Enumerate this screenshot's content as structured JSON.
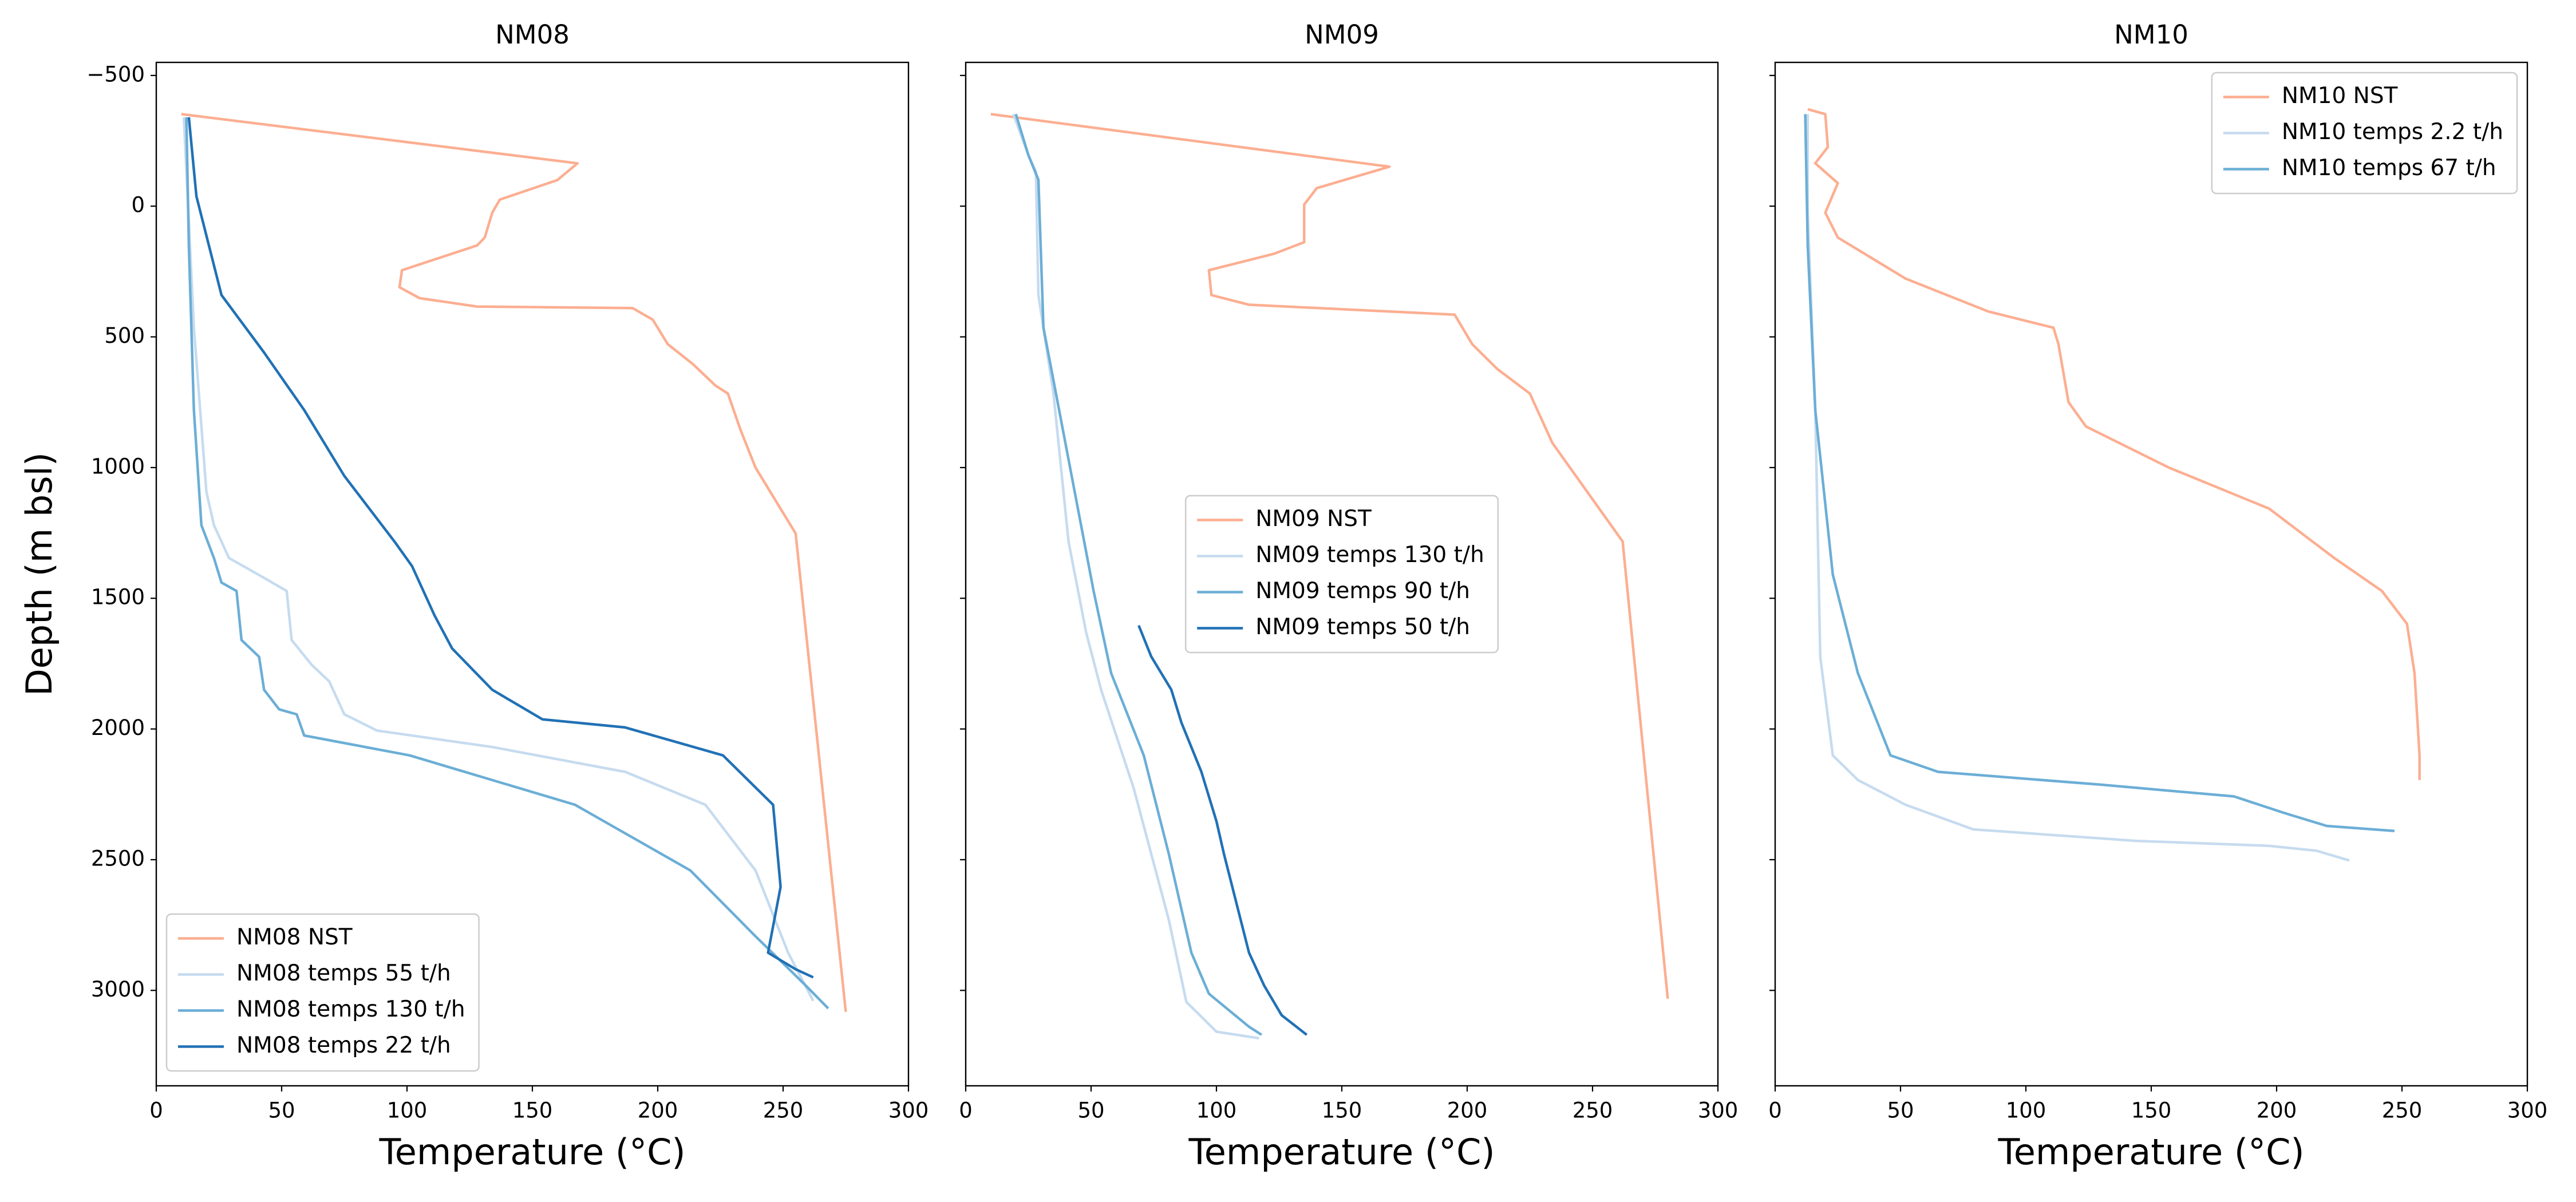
{
  "chart_data": [
    {
      "type": "line",
      "title": "NM08",
      "xlabel": "Temperature (°C)",
      "ylabel": "Depth (m bsl)",
      "xlim": [
        0,
        300
      ],
      "xticks": [
        0,
        50,
        100,
        150,
        200,
        250,
        300
      ],
      "ylim": [
        -550,
        3365
      ],
      "invert_y": true,
      "show_ytick_labels": true,
      "yticks": [
        {
          "value": -500,
          "label": "−500"
        },
        0,
        500,
        1000,
        1500,
        2000,
        2500,
        3000
      ],
      "legend": "lower left",
      "series": [
        {
          "name": "NM08 NST",
          "color": "#fcae91",
          "x": [
            10,
            168,
            160,
            137,
            134,
            131,
            128,
            98,
            97,
            105,
            128,
            190,
            198,
            204,
            214,
            223,
            228,
            233,
            239,
            255,
            275
          ],
          "values": [
            -352,
            -164,
            -100,
            -25,
            25,
            120,
            150,
            245,
            310,
            352,
            384,
            390,
            434,
            528,
            604,
            686,
            717,
            855,
            1000,
            1252,
            3082
          ]
        },
        {
          "name": "NM08 temps 55 t/h",
          "color": "#c6dbef",
          "x": [
            11,
            15,
            20,
            23,
            29,
            43,
            52,
            54,
            62,
            69,
            75,
            88,
            134,
            187,
            219,
            239,
            252,
            262
          ],
          "values": [
            -340,
            465,
            1094,
            1220,
            1346,
            1422,
            1472,
            1660,
            1755,
            1818,
            1944,
            2006,
            2069,
            2164,
            2290,
            2541,
            2856,
            3040
          ]
        },
        {
          "name": "NM08 temps 130 t/h",
          "color": "#6baed6",
          "x": [
            12,
            13,
            15,
            18,
            23,
            26,
            32,
            34,
            41,
            43,
            49,
            56,
            59,
            101,
            167,
            213,
            239,
            259,
            268
          ],
          "values": [
            -340,
            151,
            780,
            1220,
            1346,
            1440,
            1472,
            1660,
            1724,
            1850,
            1925,
            1944,
            2025,
            2101,
            2290,
            2541,
            2793,
            2981,
            3069
          ]
        },
        {
          "name": "NM08 temps 22 t/h",
          "color": "#2171b5",
          "x": [
            13,
            16,
            26,
            43,
            59,
            75,
            95,
            102,
            111,
            118,
            134,
            154,
            187,
            226,
            246,
            249,
            244,
            255,
            262
          ],
          "values": [
            -340,
            -38,
            340,
            560,
            780,
            1032,
            1283,
            1377,
            1566,
            1692,
            1850,
            1963,
            1994,
            2101,
            2290,
            2604,
            2856,
            2919,
            2950
          ]
        }
      ]
    },
    {
      "type": "line",
      "title": "NM09",
      "xlabel": "Temperature (°C)",
      "xlim": [
        0,
        300
      ],
      "xticks": [
        0,
        50,
        100,
        150,
        200,
        250,
        300
      ],
      "ylim": [
        -550,
        3365
      ],
      "invert_y": true,
      "show_ytick_labels": false,
      "yticks": [
        -500,
        0,
        500,
        1000,
        1500,
        2000,
        2500,
        3000
      ],
      "legend": "center",
      "series": [
        {
          "name": "NM09 NST",
          "color": "#fcae91",
          "x": [
            10,
            169,
            140,
            135,
            135,
            123,
            97,
            98,
            113,
            195,
            202,
            212,
            225,
            234,
            262,
            280
          ],
          "values": [
            -352,
            -151,
            -69,
            -6,
            138,
            182,
            245,
            340,
            377,
            415,
            528,
            623,
            717,
            906,
            1283,
            3032
          ]
        },
        {
          "name": "NM09 temps 130 t/h",
          "color": "#c6dbef",
          "x": [
            19,
            25,
            28,
            29,
            35,
            41,
            48,
            54,
            67,
            81,
            88,
            100,
            117
          ],
          "values": [
            -352,
            -195,
            -132,
            340,
            717,
            1283,
            1629,
            1850,
            2227,
            2730,
            3044,
            3158,
            3183
          ]
        },
        {
          "name": "NM09 temps 90 t/h",
          "color": "#6baed6",
          "x": [
            20,
            25,
            29,
            31,
            41,
            51,
            58,
            71,
            81,
            90,
            97,
            113,
            118
          ],
          "values": [
            -352,
            -195,
            -101,
            465,
            969,
            1472,
            1786,
            2101,
            2478,
            2856,
            3013,
            3139,
            3170
          ]
        },
        {
          "name": "NM09 temps 50 t/h",
          "color": "#2171b5",
          "x": [
            69,
            74,
            82,
            86,
            94,
            100,
            103,
            113,
            119,
            126,
            136
          ],
          "values": [
            1604,
            1723,
            1850,
            1975,
            2164,
            2353,
            2478,
            2856,
            2981,
            3095,
            3170
          ]
        }
      ]
    },
    {
      "type": "line",
      "title": "NM10",
      "xlabel": "Temperature (°C)",
      "xlim": [
        0,
        300
      ],
      "xticks": [
        0,
        50,
        100,
        150,
        200,
        250,
        300
      ],
      "ylim": [
        -550,
        3365
      ],
      "invert_y": true,
      "show_ytick_labels": false,
      "yticks": [
        -500,
        0,
        500,
        1000,
        1500,
        2000,
        2500,
        3000
      ],
      "legend": "upper right",
      "series": [
        {
          "name": "NM10 NST",
          "color": "#fcae91",
          "x": [
            13,
            20,
            21,
            16,
            25,
            20,
            25,
            52,
            85,
            111,
            113,
            117,
            124,
            157,
            197,
            223,
            242,
            252,
            255,
            257,
            257
          ],
          "values": [
            -371,
            -352,
            -226,
            -164,
            -88,
            25,
            120,
            277,
            403,
            465,
            528,
            750,
            843,
            1000,
            1157,
            1346,
            1472,
            1598,
            1786,
            2101,
            2195
          ]
        },
        {
          "name": "NM10 temps 2.2 t/h",
          "color": "#c6dbef",
          "x": [
            13,
            13,
            16,
            18,
            23,
            33,
            52,
            79,
            144,
            197,
            216,
            229
          ],
          "values": [
            -352,
            25,
            780,
            1724,
            2101,
            2195,
            2290,
            2384,
            2428,
            2447,
            2466,
            2503
          ]
        },
        {
          "name": "NM10 temps 67 t/h",
          "color": "#6baed6",
          "x": [
            12,
            13,
            16,
            23,
            33,
            46,
            65,
            131,
            183,
            203,
            220,
            247
          ],
          "values": [
            -352,
            151,
            780,
            1409,
            1786,
            2101,
            2164,
            2214,
            2258,
            2321,
            2371,
            2390
          ]
        }
      ]
    }
  ]
}
